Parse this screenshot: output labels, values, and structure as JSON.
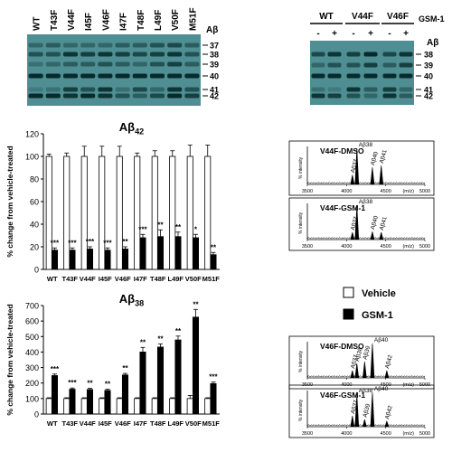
{
  "blots": {
    "left": {
      "lanes": [
        "WT",
        "T43F",
        "V44F",
        "I45F",
        "V46F",
        "I47F",
        "T48F",
        "L49F",
        "V50F",
        "M51F"
      ],
      "ab_label": "Aβ",
      "bands": [
        "37",
        "38",
        "39",
        "40",
        "41",
        "42"
      ]
    },
    "right": {
      "groups": [
        "WT",
        "V44F",
        "V46F"
      ],
      "treatment_label": "GSM-1",
      "lane_marks": [
        "-",
        "+",
        "-",
        "+",
        "-",
        "+"
      ],
      "ab_label": "Aβ",
      "bands": [
        "38",
        "39",
        "40",
        "41",
        "42"
      ]
    }
  },
  "chart_data": [
    {
      "type": "bar",
      "title": "Aβ42",
      "ylabel": "% change from vehicle-treated",
      "ylim": [
        0,
        120
      ],
      "yticks": [
        0,
        20,
        40,
        60,
        80,
        100,
        120
      ],
      "categories": [
        "WT",
        "T43F",
        "V44F",
        "I45F",
        "V46F",
        "I47F",
        "T48F",
        "L49F",
        "V50F",
        "M51F"
      ],
      "series": [
        {
          "name": "Vehicle",
          "color": "#ffffff",
          "values": [
            100,
            100,
            100,
            100,
            100,
            100,
            100,
            100,
            100,
            100
          ],
          "errors": [
            2,
            3,
            9,
            9,
            9,
            3,
            5,
            5,
            10,
            10
          ]
        },
        {
          "name": "GSM-1",
          "color": "#000000",
          "values": [
            17,
            17,
            18,
            17,
            18,
            28,
            29,
            29,
            28,
            13
          ],
          "errors": [
            2,
            2,
            2,
            2,
            2,
            3,
            6,
            4,
            3,
            2
          ]
        }
      ],
      "significance": [
        "***",
        "***",
        "***",
        "***",
        "**",
        "***",
        "**",
        "**",
        "*",
        "**"
      ]
    },
    {
      "type": "bar",
      "title": "Aβ38",
      "ylabel": "% change from vehicle-treated",
      "ylim": [
        0,
        700
      ],
      "yticks": [
        0,
        100,
        200,
        300,
        400,
        500,
        600,
        700
      ],
      "categories": [
        "WT",
        "T43F",
        "V44F",
        "I45F",
        "V46F",
        "I47F",
        "T48F",
        "L49F",
        "V50F",
        "M51F"
      ],
      "series": [
        {
          "name": "Vehicle",
          "color": "#ffffff",
          "values": [
            100,
            100,
            100,
            100,
            100,
            100,
            100,
            100,
            100,
            100
          ],
          "errors": [
            5,
            5,
            5,
            5,
            5,
            5,
            5,
            5,
            20,
            5
          ]
        },
        {
          "name": "GSM-1",
          "color": "#000000",
          "values": [
            248,
            160,
            158,
            152,
            252,
            400,
            432,
            478,
            625,
            196
          ],
          "errors": [
            10,
            8,
            8,
            8,
            10,
            30,
            20,
            25,
            50,
            10
          ]
        }
      ],
      "significance": [
        "***",
        "***",
        "**",
        "**",
        "**",
        "**",
        "**",
        "**",
        "**",
        "***"
      ],
      "legend": [
        "Vehicle",
        "GSM-1"
      ],
      "legend_position": "top-right"
    },
    {
      "type": "line",
      "title": "V44F-DMSO",
      "xlabel": "(m/z)",
      "ylabel": "% intensity",
      "xlim": [
        3500,
        5000
      ],
      "xticks": [
        3500,
        4000,
        4500,
        5000
      ],
      "peaks": [
        {
          "label": "Aβ37",
          "mz": 4075,
          "height": 0.25
        },
        {
          "label": "Aβ38",
          "mz": 4132,
          "height": 0.95
        },
        {
          "label": "Aβ40",
          "mz": 4330,
          "height": 0.45
        },
        {
          "label": "Aβ41",
          "mz": 4443,
          "height": 0.5
        }
      ]
    },
    {
      "type": "line",
      "title": "V44F-GSM-1",
      "xlabel": "(m/z)",
      "ylabel": "% intensity",
      "xlim": [
        3500,
        5000
      ],
      "xticks": [
        3500,
        4000,
        4500,
        5000
      ],
      "peaks": [
        {
          "label": "Aβ37",
          "mz": 4075,
          "height": 0.2
        },
        {
          "label": "Aβ38",
          "mz": 4132,
          "height": 0.95
        },
        {
          "label": "Aβ40",
          "mz": 4330,
          "height": 0.22
        },
        {
          "label": "Aβ41",
          "mz": 4443,
          "height": 0.2
        }
      ]
    },
    {
      "type": "line",
      "title": "V46F-DMSO",
      "xlabel": "(m/z)",
      "ylabel": "% intensity",
      "xlim": [
        3500,
        5000
      ],
      "xticks": [
        3500,
        4000,
        4500,
        5000
      ],
      "peaks": [
        {
          "label": "Aβ37",
          "mz": 4075,
          "height": 0.2
        },
        {
          "label": "Aβ38",
          "mz": 4132,
          "height": 0.4
        },
        {
          "label": "Aβ39",
          "mz": 4231,
          "height": 0.45
        },
        {
          "label": "Aβ40",
          "mz": 4330,
          "height": 0.95
        },
        {
          "label": "Aβ42",
          "mz": 4514,
          "height": 0.2
        }
      ]
    },
    {
      "type": "line",
      "title": "V46F-GSM-1",
      "xlabel": "(m/z)",
      "ylabel": "% intensity",
      "xlim": [
        3500,
        5000
      ],
      "xticks": [
        3500,
        4000,
        4500,
        5000
      ],
      "peaks": [
        {
          "label": "Aβ37",
          "mz": 4075,
          "height": 0.3
        },
        {
          "label": "Aβ38",
          "mz": 4132,
          "height": 0.9
        },
        {
          "label": "Aβ39",
          "mz": 4231,
          "height": 0.2
        },
        {
          "label": "Aβ40",
          "mz": 4330,
          "height": 0.95
        },
        {
          "label": "Aβ42",
          "mz": 4514,
          "height": 0.15
        }
      ]
    }
  ]
}
